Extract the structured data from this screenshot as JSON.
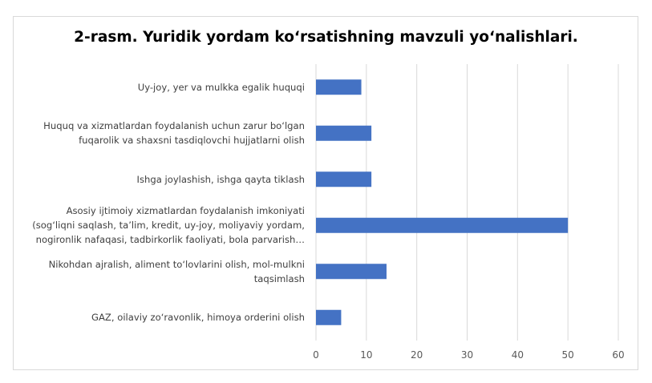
{
  "chart_data": {
    "type": "bar",
    "orientation": "horizontal",
    "title": "2-rasm. Yuridik yordam ko‘rsatishning mavzuli yo‘nalishlari.",
    "categories": [
      [
        "Uy-joy, yer va mulkka egalik huquqi"
      ],
      [
        "Huquq va xizmatlardan foydalanish uchun zarur bo‘lgan",
        "fuqarolik va shaxsni tasdiqlovchi hujjatlarni olish"
      ],
      [
        "Ishga joylashish, ishga qayta tiklash"
      ],
      [
        "Asosiy ijtimoiy xizmatlardan foydalanish imkoniyati",
        "(sog‘liqni saqlash, ta’lim, kredit, uy-joy, moliyaviy yordam,",
        "nogironlik nafaqasi, tadbirkorlik faoliyati, bola parvarish…"
      ],
      [
        "Nikohdan ajralish, aliment to‘lovlarini olish, mol-mulkni",
        "taqsimlash"
      ],
      [
        "GAZ, oilaviy zo‘ravonlik, himoya orderini olish"
      ]
    ],
    "values": [
      9,
      11,
      11,
      50,
      14,
      5
    ],
    "xlim": [
      0,
      60
    ],
    "xticks": [
      "0",
      "10",
      "20",
      "30",
      "40",
      "50",
      "60"
    ],
    "grid": true,
    "bar_color": "#4472c4",
    "grid_color": "#d9d9d9"
  }
}
